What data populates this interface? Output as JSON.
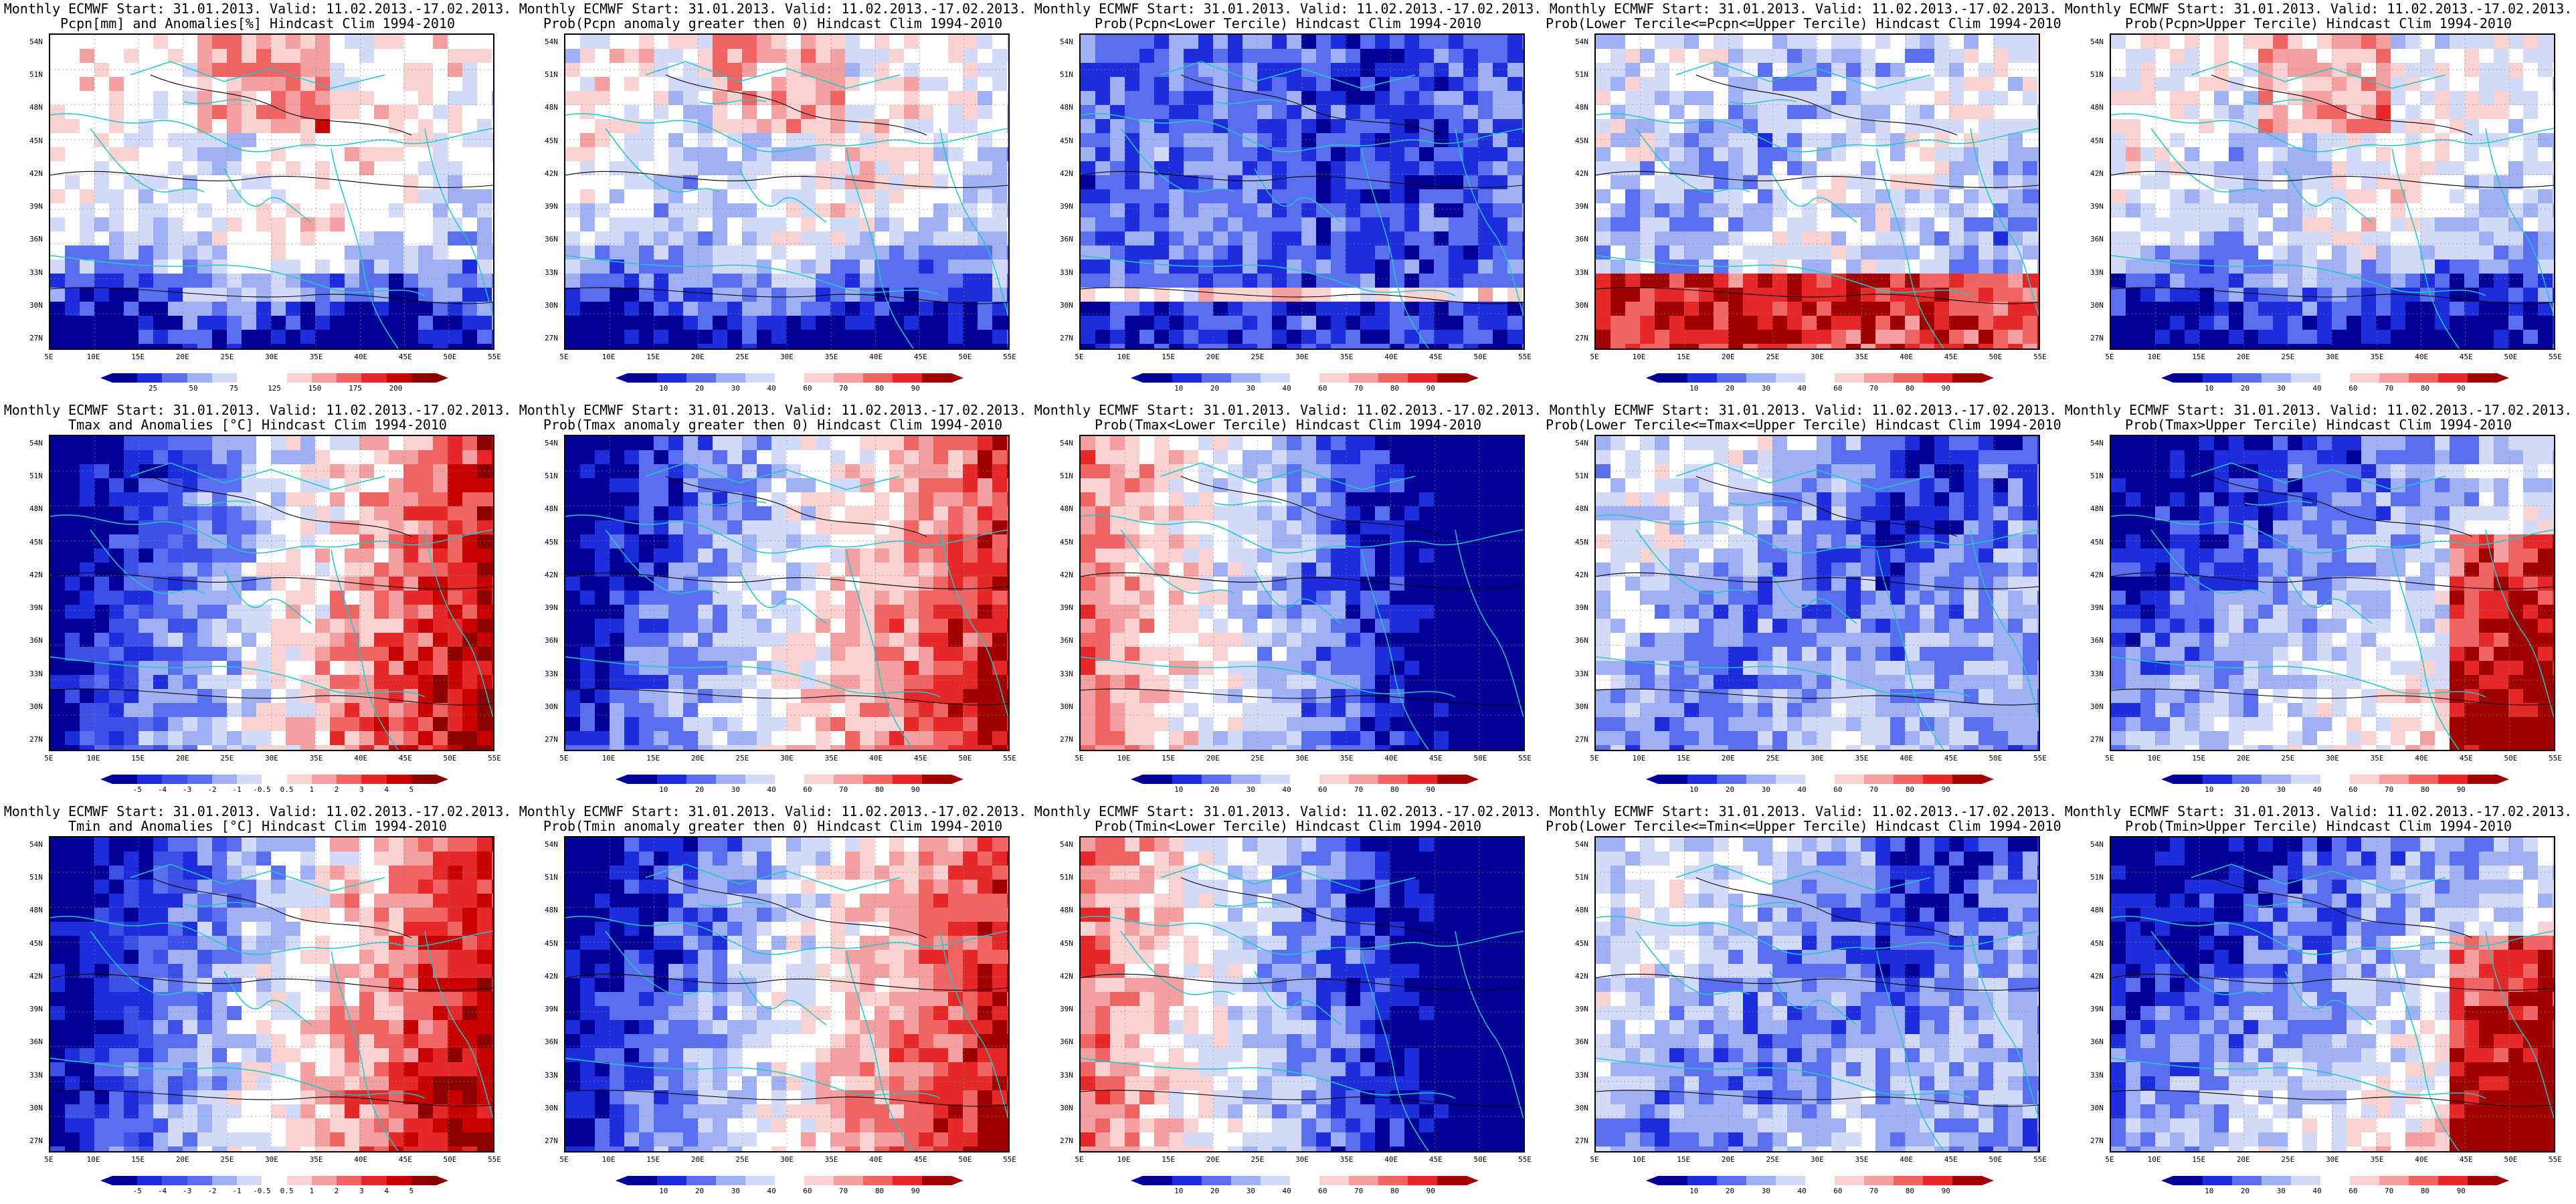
{
  "panels": [
    {
      "title1": "Monthly ECMWF Start: 31.01.2013. Valid: 11.02.2013.-17.02.2013.",
      "title2": "Pcpn[mm] and Anomalies[%] Hindcast Clim 1994-2010",
      "scale": "anom",
      "legend": [
        "25",
        "50",
        "75",
        "125",
        "150",
        "175",
        "200"
      ],
      "pattern": "pcpn_anom"
    },
    {
      "title1": "Monthly ECMWF Start: 31.01.2013. Valid: 11.02.2013.-17.02.2013.",
      "title2": "Prob(Pcpn anomaly greater then 0) Hindcast Clim 1994-2010",
      "scale": "prob",
      "legend": [
        "10",
        "20",
        "30",
        "40",
        "60",
        "70",
        "80",
        "90"
      ],
      "pattern": "pcpn_anom"
    },
    {
      "title1": "Monthly ECMWF Start: 31.01.2013. Valid: 11.02.2013.-17.02.2013.",
      "title2": "Prob(Pcpn<Lower Tercile) Hindcast Clim 1994-2010",
      "scale": "prob",
      "legend": [
        "10",
        "20",
        "30",
        "40",
        "60",
        "70",
        "80",
        "90"
      ],
      "pattern": "pcpn_low"
    },
    {
      "title1": "Monthly ECMWF Start: 31.01.2013. Valid: 11.02.2013.-17.02.2013.",
      "title2": "Prob(Lower Tercile<=Pcpn<=Upper Tercile) Hindcast Clim 1994-2010",
      "scale": "prob",
      "legend": [
        "10",
        "20",
        "30",
        "40",
        "60",
        "70",
        "80",
        "90"
      ],
      "pattern": "pcpn_mid"
    },
    {
      "title1": "Monthly ECMWF Start: 31.01.2013. Valid: 11.02.2013.-17.02.2013.",
      "title2": "Prob(Pcpn>Upper Tercile) Hindcast Clim 1994-2010",
      "scale": "prob",
      "legend": [
        "10",
        "20",
        "30",
        "40",
        "60",
        "70",
        "80",
        "90"
      ],
      "pattern": "pcpn_anom"
    },
    {
      "title1": "Monthly ECMWF Start: 31.01.2013. Valid: 11.02.2013.-17.02.2013.",
      "title2": "Tmax and Anomalies [°C] Hindcast Clim 1994-2010",
      "scale": "temp",
      "legend": [
        "-5",
        "-4",
        "-3",
        "-2",
        "-1",
        "-0.5",
        "0.5",
        "1",
        "2",
        "3",
        "4",
        "5"
      ],
      "pattern": "t_east_warm"
    },
    {
      "title1": "Monthly ECMWF Start: 31.01.2013. Valid: 11.02.2013.-17.02.2013.",
      "title2": "Prob(Tmax anomaly greater then 0) Hindcast Clim 1994-2010",
      "scale": "prob",
      "legend": [
        "10",
        "20",
        "30",
        "40",
        "60",
        "70",
        "80",
        "90"
      ],
      "pattern": "t_east_warm"
    },
    {
      "title1": "Monthly ECMWF Start: 31.01.2013. Valid: 11.02.2013.-17.02.2013.",
      "title2": "Prob(Tmax<Lower Tercile) Hindcast Clim 1994-2010",
      "scale": "prob",
      "legend": [
        "10",
        "20",
        "30",
        "40",
        "60",
        "70",
        "80",
        "90"
      ],
      "pattern": "t_west_warm"
    },
    {
      "title1": "Monthly ECMWF Start: 31.01.2013. Valid: 11.02.2013.-17.02.2013.",
      "title2": "Prob(Lower Tercile<=Tmax<=Upper Tercile) Hindcast Clim 1994-2010",
      "scale": "prob",
      "legend": [
        "10",
        "20",
        "30",
        "40",
        "60",
        "70",
        "80",
        "90"
      ],
      "pattern": "t_mid"
    },
    {
      "title1": "Monthly ECMWF Start: 31.01.2013. Valid: 11.02.2013.-17.02.2013.",
      "title2": "Prob(Tmax>Upper Tercile) Hindcast Clim 1994-2010",
      "scale": "prob",
      "legend": [
        "10",
        "20",
        "30",
        "40",
        "60",
        "70",
        "80",
        "90"
      ],
      "pattern": "t_se_warm"
    },
    {
      "title1": "Monthly ECMWF Start: 31.01.2013. Valid: 11.02.2013.-17.02.2013.",
      "title2": "Tmin and Anomalies [°C] Hindcast Clim 1994-2010",
      "scale": "temp",
      "legend": [
        "-5",
        "-4",
        "-3",
        "-2",
        "-1",
        "-0.5",
        "0.5",
        "1",
        "2",
        "3",
        "4",
        "5"
      ],
      "pattern": "t_east_warm"
    },
    {
      "title1": "Monthly ECMWF Start: 31.01.2013. Valid: 11.02.2013.-17.02.2013.",
      "title2": "Prob(Tmin anomaly greater then 0) Hindcast Clim 1994-2010",
      "scale": "prob",
      "legend": [
        "10",
        "20",
        "30",
        "40",
        "60",
        "70",
        "80",
        "90"
      ],
      "pattern": "t_east_warm"
    },
    {
      "title1": "Monthly ECMWF Start: 31.01.2013. Valid: 11.02.2013.-17.02.2013.",
      "title2": "Prob(Tmin<Lower Tercile) Hindcast Clim 1994-2010",
      "scale": "prob",
      "legend": [
        "10",
        "20",
        "30",
        "40",
        "60",
        "70",
        "80",
        "90"
      ],
      "pattern": "t_west_warm"
    },
    {
      "title1": "Monthly ECMWF Start: 31.01.2013. Valid: 11.02.2013.-17.02.2013.",
      "title2": "Prob(Lower Tercile<=Tmin<=Upper Tercile) Hindcast Clim 1994-2010",
      "scale": "prob",
      "legend": [
        "10",
        "20",
        "30",
        "40",
        "60",
        "70",
        "80",
        "90"
      ],
      "pattern": "t_mid"
    },
    {
      "title1": "Monthly ECMWF Start: 31.01.2013. Valid: 11.02.2013.-17.02.2013.",
      "title2": "Prob(Tmin>Upper Tercile) Hindcast Clim 1994-2010",
      "scale": "prob",
      "legend": [
        "10",
        "20",
        "30",
        "40",
        "60",
        "70",
        "80",
        "90"
      ],
      "pattern": "t_se_warm"
    }
  ],
  "lat_labels": [
    "54N",
    "51N",
    "48N",
    "45N",
    "42N",
    "39N",
    "36N",
    "33N",
    "30N",
    "27N"
  ],
  "lon_labels": [
    "5E",
    "10E",
    "15E",
    "20E",
    "25E",
    "30E",
    "35E",
    "40E",
    "45E",
    "50E",
    "55E"
  ],
  "colors": {
    "anom": [
      "#000096",
      "#1e2ddc",
      "#5a6ef0",
      "#9fb0f5",
      "#d2daf8",
      "#ffffff",
      "#ffffff",
      "#fad2d2",
      "#f5a0a0",
      "#f06464",
      "#e62828",
      "#c80000",
      "#8c0000"
    ],
    "prob": [
      "#000096",
      "#1e2ddc",
      "#5a6ef0",
      "#9fb0f5",
      "#d2daf8",
      "#ffffff",
      "#fad2d2",
      "#f5a0a0",
      "#f06464",
      "#e62828",
      "#a00000"
    ],
    "temp": [
      "#000096",
      "#1e2ddc",
      "#3c50e6",
      "#5a6ef0",
      "#9fb0f5",
      "#d2daf8",
      "#ffffff",
      "#fad2d2",
      "#f5a0a0",
      "#f06464",
      "#e62828",
      "#c80000",
      "#8c0000"
    ],
    "coast": "#20c8c8",
    "contour": "#000000"
  }
}
